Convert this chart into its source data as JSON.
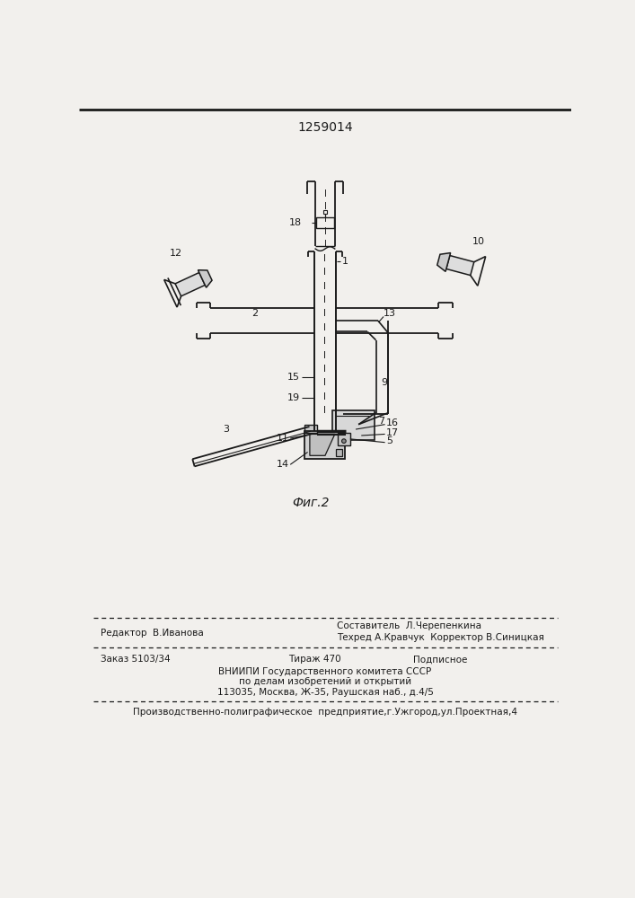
{
  "patent_number": "1259014",
  "figure_label": "Фиг.2",
  "bg_color": "#f2f0ed",
  "line_color": "#1a1a1a",
  "text_color": "#1a1a1a",
  "footer": {
    "redaktor": "Редактор  В.Иванова",
    "sostavitel": "Составитель  Л.Черепенкина",
    "tehred": "Техред А.Кравчук  Корректор В.Синицкая",
    "zakaz": "Заказ 5103/34",
    "tirazh": "Тираж 470",
    "podpisnoe": "Подписное",
    "vniiipi": "ВНИИПИ Государственного комитета СССР",
    "po_delam": "по делам изобретений и открытий",
    "address": "113035, Москва, Ж-35, Раушская наб., д.4/5",
    "proizv": "Производственно-полиграфическое  предприятие,г.Ужгород,ул.Проектная,4"
  }
}
